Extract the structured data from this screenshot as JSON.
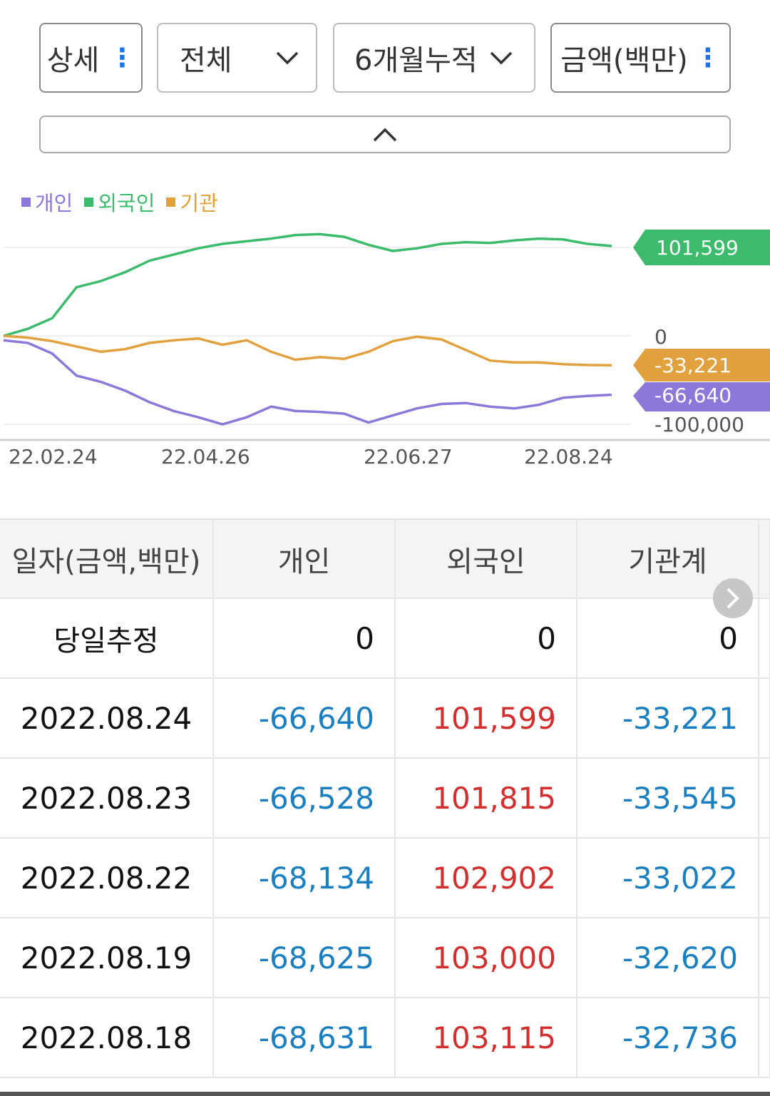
{
  "controls": {
    "view_select": {
      "value": "상세"
    },
    "scope_select": {
      "value": "전체"
    },
    "period_select": {
      "value": "6개월누적"
    },
    "unit_select": {
      "value": "금액(백만)"
    }
  },
  "icons": {
    "kebab": "kebab-icon",
    "dropdown": "chevron-down-icon",
    "collapse": "chevron-up-icon",
    "scroll_right": "chevron-right-icon"
  },
  "colors": {
    "individual": "#8b78d8",
    "foreign": "#3dbb6c",
    "institution": "#e2a13f",
    "negative": "#1a7fc0",
    "positive": "#d32f2f"
  },
  "chart_data": {
    "type": "line",
    "legend": [
      "개인",
      "외국인",
      "기관"
    ],
    "x_ticks": [
      "22.02.24",
      "22.04.26",
      "22.06.27",
      "22.08.24"
    ],
    "y_ticks": [
      "0",
      "-100,000"
    ],
    "end_labels": {
      "foreign": "101,599",
      "institution": "-33,221",
      "individual": "-66,640"
    },
    "ylim": [
      -100000,
      120000
    ],
    "x": [
      "22.02.24",
      "22.03.04",
      "22.03.11",
      "22.03.18",
      "22.03.25",
      "22.04.01",
      "22.04.08",
      "22.04.15",
      "22.04.26",
      "22.05.03",
      "22.05.10",
      "22.05.17",
      "22.05.24",
      "22.05.31",
      "22.06.07",
      "22.06.14",
      "22.06.21",
      "22.06.27",
      "22.07.04",
      "22.07.11",
      "22.07.18",
      "22.07.25",
      "22.08.01",
      "22.08.08",
      "22.08.16",
      "22.08.24"
    ],
    "series": [
      {
        "name": "외국인",
        "values": [
          0,
          8000,
          20000,
          55000,
          62000,
          72000,
          85000,
          92000,
          99000,
          104000,
          107000,
          110000,
          114000,
          115000,
          112000,
          103000,
          96000,
          99000,
          104000,
          106000,
          105000,
          108000,
          110000,
          109000,
          104000,
          101599
        ]
      },
      {
        "name": "기관",
        "values": [
          0,
          -2000,
          -6000,
          -12000,
          -18000,
          -15000,
          -8000,
          -5000,
          -3000,
          -10000,
          -5000,
          -18000,
          -27000,
          -24000,
          -26000,
          -18000,
          -6000,
          -1000,
          -4000,
          -16000,
          -28000,
          -30000,
          -30000,
          -32000,
          -33000,
          -33221
        ]
      },
      {
        "name": "개인",
        "values": [
          -5000,
          -8000,
          -20000,
          -45000,
          -52000,
          -62000,
          -75000,
          -85000,
          -92000,
          -100000,
          -92000,
          -80000,
          -85000,
          -86000,
          -88000,
          -98000,
          -90000,
          -82000,
          -77000,
          -76000,
          -80000,
          -82000,
          -78000,
          -70000,
          -68000,
          -66640
        ]
      }
    ]
  },
  "table": {
    "headers": [
      "일자(금액,백만)",
      "개인",
      "외국인",
      "기관계"
    ],
    "today_row": {
      "label": "당일추정",
      "individual": "0",
      "foreign": "0",
      "institution": "0"
    },
    "rows": [
      {
        "date": "2022.08.24",
        "individual": "-66,640",
        "foreign": "101,599",
        "institution": "-33,221"
      },
      {
        "date": "2022.08.23",
        "individual": "-66,528",
        "foreign": "101,815",
        "institution": "-33,545"
      },
      {
        "date": "2022.08.22",
        "individual": "-68,134",
        "foreign": "102,902",
        "institution": "-33,022"
      },
      {
        "date": "2022.08.19",
        "individual": "-68,625",
        "foreign": "103,000",
        "institution": "-32,620"
      },
      {
        "date": "2022.08.18",
        "individual": "-68,631",
        "foreign": "103,115",
        "institution": "-32,736"
      }
    ]
  }
}
